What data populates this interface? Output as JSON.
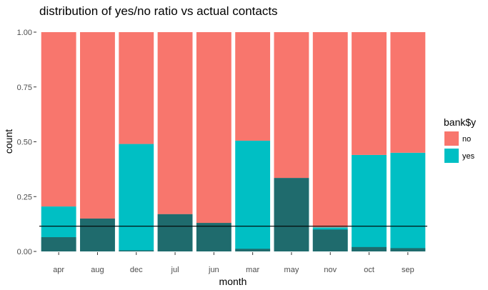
{
  "chart_data": {
    "type": "bar",
    "title": "distribution of yes/no ratio vs actual contacts",
    "xlabel": "month",
    "ylabel": "count",
    "ylim": [
      0,
      1
    ],
    "yticks": [
      "0.00",
      "0.25",
      "0.50",
      "0.75",
      "1.00"
    ],
    "grid": false,
    "categories": [
      "apr",
      "aug",
      "dec",
      "jul",
      "jun",
      "mar",
      "may",
      "nov",
      "oct",
      "sep"
    ],
    "series": [
      {
        "name": "no",
        "color": "#F8766D",
        "values": [
          0.795,
          0.85,
          0.51,
          0.83,
          0.87,
          0.495,
          0.665,
          0.89,
          0.56,
          0.55
        ]
      },
      {
        "name": "yes",
        "color": "#00BFC4",
        "values": [
          0.205,
          0.15,
          0.49,
          0.17,
          0.13,
          0.505,
          0.335,
          0.11,
          0.44,
          0.45
        ]
      }
    ],
    "overlay": {
      "color": "#333333",
      "opacity": 0.6,
      "values": [
        0.065,
        0.15,
        0.005,
        0.17,
        0.13,
        0.012,
        0.335,
        0.1,
        0.02,
        0.015
      ]
    },
    "reference_line": {
      "y": 0.115,
      "color": "#000000"
    },
    "legend": {
      "title": "bank$y",
      "position": "right",
      "items": [
        {
          "label": "no",
          "color": "#F8766D"
        },
        {
          "label": "yes",
          "color": "#00BFC4"
        }
      ]
    }
  }
}
